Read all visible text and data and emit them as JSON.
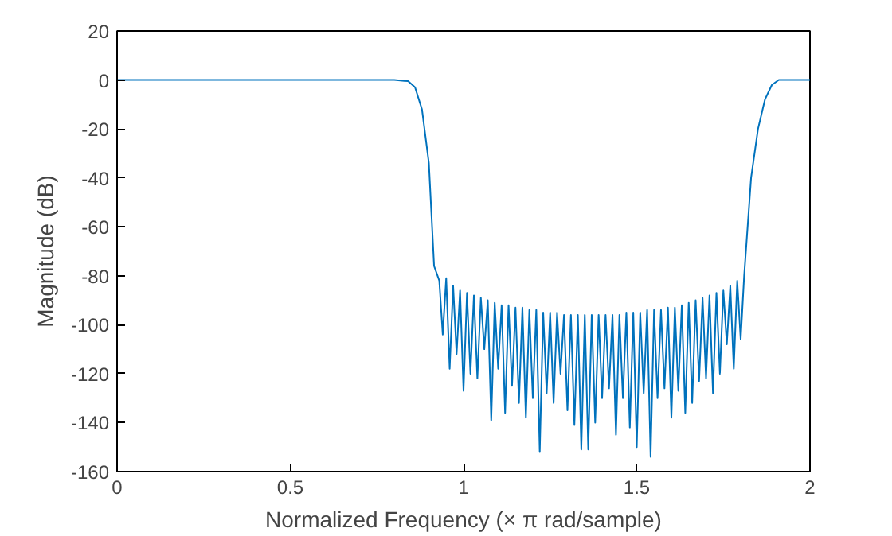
{
  "chart_data": {
    "type": "line",
    "xlabel": "Normalized Frequency (× π rad/sample)",
    "ylabel": "Magnitude (dB)",
    "xlim": [
      0,
      2
    ],
    "xticks": [
      0,
      0.5,
      1,
      1.5,
      2
    ],
    "ylim": [
      -160,
      20
    ],
    "yticks": [
      -160,
      -140,
      -120,
      -100,
      -80,
      -60,
      -40,
      -20,
      0,
      20
    ],
    "grid": false,
    "series": [
      {
        "color": "#0072bd",
        "x": [
          0,
          0.5,
          0.8,
          0.84,
          0.86,
          0.88,
          0.9,
          0.915,
          0.93,
          0.94,
          0.95,
          0.96,
          0.97,
          0.98,
          0.99,
          1.0,
          1.01,
          1.02,
          1.03,
          1.04,
          1.05,
          1.06,
          1.07,
          1.08,
          1.09,
          1.1,
          1.11,
          1.12,
          1.13,
          1.14,
          1.15,
          1.16,
          1.17,
          1.18,
          1.19,
          1.2,
          1.21,
          1.22,
          1.23,
          1.24,
          1.25,
          1.26,
          1.27,
          1.28,
          1.29,
          1.3,
          1.31,
          1.32,
          1.33,
          1.34,
          1.35,
          1.36,
          1.37,
          1.38,
          1.39,
          1.4,
          1.41,
          1.42,
          1.43,
          1.44,
          1.45,
          1.46,
          1.47,
          1.48,
          1.49,
          1.5,
          1.51,
          1.52,
          1.53,
          1.54,
          1.55,
          1.56,
          1.57,
          1.58,
          1.59,
          1.6,
          1.61,
          1.62,
          1.63,
          1.64,
          1.65,
          1.66,
          1.67,
          1.68,
          1.69,
          1.7,
          1.71,
          1.72,
          1.73,
          1.74,
          1.75,
          1.76,
          1.77,
          1.78,
          1.79,
          1.8,
          1.81,
          1.83,
          1.85,
          1.87,
          1.89,
          1.91,
          2.0
        ],
        "values": [
          0,
          0,
          0,
          -0.5,
          -3,
          -12,
          -34,
          -76,
          -82,
          -104,
          -81,
          -118,
          -84,
          -112,
          -86,
          -127,
          -87,
          -120,
          -88,
          -122,
          -89,
          -110,
          -90,
          -139,
          -91,
          -118,
          -92,
          -136,
          -92,
          -125,
          -93,
          -132,
          -93,
          -138,
          -94,
          -130,
          -94,
          -152,
          -95,
          -128,
          -95,
          -132,
          -95,
          -120,
          -96,
          -135,
          -96,
          -141,
          -96,
          -151,
          -96,
          -151,
          -96,
          -140,
          -96,
          -130,
          -96,
          -126,
          -96,
          -145,
          -96,
          -130,
          -95,
          -142,
          -95,
          -150,
          -95,
          -128,
          -94,
          -154,
          -94,
          -130,
          -94,
          -126,
          -93,
          -138,
          -93,
          -127,
          -92,
          -136,
          -91,
          -132,
          -90,
          -123,
          -89,
          -122,
          -88,
          -128,
          -87,
          -120,
          -86,
          -108,
          -84,
          -118,
          -82,
          -106,
          -80,
          -40,
          -20,
          -8,
          -2,
          0,
          0
        ]
      }
    ]
  }
}
